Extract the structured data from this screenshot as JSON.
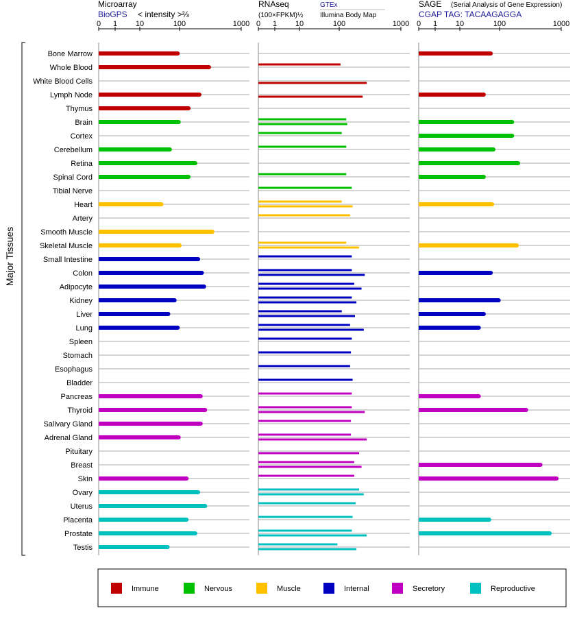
{
  "panels": [
    {
      "title": "Microarray",
      "subtitle": "BioGPS",
      "label": "< intensity >⅔",
      "note": ""
    },
    {
      "title": "RNAseq",
      "subtitle": "",
      "label": "(100×FPKM)½",
      "note": "GTEx",
      "note2": "Illumina Body Map"
    },
    {
      "title": "SAGE",
      "subtitle": "CGAP TAG: TACAAGAGGA",
      "label": "(Serial Analysis of Gene Expression)",
      "note": ""
    }
  ],
  "y_axis_label": "Major Tissues",
  "tick_labels": [
    "0",
    "1",
    "10",
    "100",
    "1000"
  ],
  "colors": {
    "Immune": "#c00000",
    "Nervous": "#00c000",
    "Muscle": "#ffc000",
    "Internal": "#0000c0",
    "Secretory": "#c000c0",
    "Reproductive": "#00c0c0"
  },
  "legend": [
    "Immune",
    "Nervous",
    "Muscle",
    "Internal",
    "Secretory",
    "Reproductive"
  ],
  "chart_data": {
    "type": "bar",
    "orientation": "horizontal",
    "x_scale": "log-like, ticks at 0, 1, 10, 100, 1000",
    "xlim": [
      0,
      1000
    ],
    "categories": [
      "Bone Marrow",
      "Whole Blood",
      "White Blood Cells",
      "Lymph Node",
      "Thymus",
      "Brain",
      "Cortex",
      "Cerebellum",
      "Retina",
      "Spinal Cord",
      "Tibial Nerve",
      "Heart",
      "Artery",
      "Smooth Muscle",
      "Skeletal Muscle",
      "Small Intestine",
      "Colon",
      "Adipocyte",
      "Kidney",
      "Liver",
      "Lung",
      "Spleen",
      "Stomach",
      "Esophagus",
      "Bladder",
      "Pancreas",
      "Thyroid",
      "Salivary Gland",
      "Adrenal Gland",
      "Pituitary",
      "Breast",
      "Skin",
      "Ovary",
      "Uterus",
      "Placenta",
      "Prostate",
      "Testis"
    ],
    "groups": [
      "Immune",
      "Immune",
      "Immune",
      "Immune",
      "Immune",
      "Nervous",
      "Nervous",
      "Nervous",
      "Nervous",
      "Nervous",
      "Nervous",
      "Muscle",
      "Muscle",
      "Muscle",
      "Muscle",
      "Internal",
      "Internal",
      "Internal",
      "Internal",
      "Internal",
      "Internal",
      "Internal",
      "Internal",
      "Internal",
      "Internal",
      "Secretory",
      "Secretory",
      "Secretory",
      "Secretory",
      "Secretory",
      "Secretory",
      "Secretory",
      "Reproductive",
      "Reproductive",
      "Reproductive",
      "Reproductive",
      "Reproductive"
    ],
    "series": [
      {
        "panel": "Microarray",
        "values": [
          90,
          300,
          null,
          210,
          140,
          95,
          null,
          57,
          180,
          140,
          null,
          35,
          null,
          340,
          100,
          200,
          230,
          250,
          75,
          52,
          90,
          null,
          null,
          null,
          null,
          220,
          260,
          220,
          95,
          null,
          null,
          130,
          200,
          260,
          130,
          180,
          50
        ]
      },
      {
        "panel": "RNAseq (GTEx)",
        "values": [
          null,
          105,
          null,
          null,
          null,
          130,
          110,
          130,
          null,
          130,
          160,
          110,
          150,
          null,
          130,
          160,
          160,
          175,
          160,
          110,
          150,
          160,
          155,
          150,
          165,
          160,
          160,
          155,
          155,
          null,
          175,
          175,
          210,
          185,
          165,
          160,
          90
        ]
      },
      {
        "panel": "RNAseq (Illumina Body Map)",
        "values": [
          null,
          null,
          280,
          240,
          null,
          135,
          null,
          null,
          null,
          null,
          null,
          165,
          null,
          null,
          210,
          null,
          260,
          230,
          190,
          180,
          250,
          null,
          null,
          null,
          null,
          null,
          260,
          null,
          280,
          210,
          230,
          null,
          250,
          null,
          null,
          280,
          190
        ]
      },
      {
        "panel": "SAGE",
        "values": [
          60,
          null,
          null,
          40,
          null,
          160,
          160,
          70,
          200,
          40,
          null,
          65,
          null,
          null,
          190,
          null,
          60,
          null,
          95,
          40,
          30,
          null,
          null,
          null,
          null,
          30,
          270,
          null,
          null,
          null,
          460,
          840,
          null,
          null,
          55,
          650,
          null
        ]
      }
    ]
  }
}
